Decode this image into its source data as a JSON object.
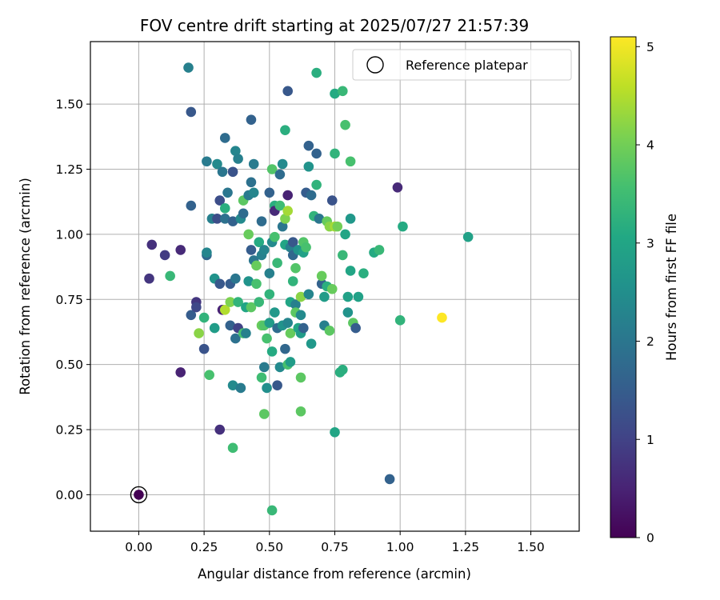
{
  "chart_data": {
    "type": "scatter",
    "title": "FOV centre drift starting at 2025/07/27 21:57:39",
    "xlabel": "Angular distance from reference (arcmin)",
    "ylabel": "Rotation from reference (arcmin)",
    "xlim": [
      -0.185,
      1.685
    ],
    "ylim": [
      -0.14,
      1.74
    ],
    "xticks": [
      "0.00",
      "0.25",
      "0.50",
      "0.75",
      "1.00",
      "1.25",
      "1.50"
    ],
    "yticks": [
      "0.00",
      "0.25",
      "0.50",
      "0.75",
      "1.00",
      "1.25",
      "1.50"
    ],
    "xtick_values": [
      0,
      0.25,
      0.5,
      0.75,
      1.0,
      1.25,
      1.5
    ],
    "ytick_values": [
      0,
      0.25,
      0.5,
      0.75,
      1.0,
      1.25,
      1.5
    ],
    "grid": true,
    "colormap": "viridis",
    "colorbar": {
      "label": "Hours from first FF file",
      "range": [
        0,
        5.1
      ],
      "ticks": [
        "0",
        "1",
        "2",
        "3",
        "4",
        "5"
      ],
      "tick_values": [
        0,
        1,
        2,
        3,
        4,
        5
      ]
    },
    "legend": {
      "position": "top-right",
      "entries": [
        "Reference platepar"
      ]
    },
    "reference_point": {
      "x": 0,
      "y": 0,
      "hours": 0
    },
    "points": [
      [
        0.0,
        0.0,
        0.0
      ],
      [
        0.04,
        0.83,
        0.8
      ],
      [
        0.05,
        0.96,
        0.7
      ],
      [
        0.1,
        0.92,
        0.9
      ],
      [
        0.12,
        0.84,
        3.4
      ],
      [
        0.16,
        0.94,
        0.6
      ],
      [
        0.16,
        0.47,
        0.5
      ],
      [
        0.19,
        1.64,
        2.2
      ],
      [
        0.2,
        1.47,
        1.4
      ],
      [
        0.2,
        1.11,
        1.6
      ],
      [
        0.2,
        0.69,
        1.5
      ],
      [
        0.22,
        0.74,
        0.8
      ],
      [
        0.22,
        0.72,
        1.1
      ],
      [
        0.23,
        0.62,
        4.2
      ],
      [
        0.25,
        0.68,
        3.3
      ],
      [
        0.25,
        0.56,
        1.3
      ],
      [
        0.26,
        1.28,
        2.1
      ],
      [
        0.26,
        0.92,
        1.7
      ],
      [
        0.26,
        0.93,
        2.3
      ],
      [
        0.27,
        0.46,
        3.6
      ],
      [
        0.28,
        1.06,
        2.2
      ],
      [
        0.29,
        0.83,
        2.6
      ],
      [
        0.29,
        0.64,
        2.8
      ],
      [
        0.3,
        1.27,
        2.4
      ],
      [
        0.3,
        1.06,
        1.2
      ],
      [
        0.31,
        1.13,
        1.2
      ],
      [
        0.31,
        0.81,
        1.4
      ],
      [
        0.31,
        0.25,
        0.7
      ],
      [
        0.32,
        1.24,
        2.0
      ],
      [
        0.32,
        0.71,
        0.5
      ],
      [
        0.33,
        1.37,
        1.8
      ],
      [
        0.33,
        1.06,
        1.9
      ],
      [
        0.33,
        0.71,
        4.5
      ],
      [
        0.33,
        1.1,
        3.2
      ],
      [
        0.34,
        1.16,
        2.0
      ],
      [
        0.35,
        0.81,
        1.5
      ],
      [
        0.35,
        0.65,
        1.6
      ],
      [
        0.35,
        0.74,
        4.1
      ],
      [
        0.36,
        1.24,
        1.3
      ],
      [
        0.36,
        1.05,
        1.6
      ],
      [
        0.36,
        0.42,
        2.4
      ],
      [
        0.36,
        0.18,
        3.5
      ],
      [
        0.37,
        1.32,
        2.3
      ],
      [
        0.37,
        0.83,
        2.0
      ],
      [
        0.37,
        0.6,
        1.9
      ],
      [
        0.38,
        1.29,
        2.2
      ],
      [
        0.38,
        0.74,
        3.3
      ],
      [
        0.38,
        0.64,
        1.0
      ],
      [
        0.39,
        1.06,
        2.4
      ],
      [
        0.39,
        0.41,
        2.1
      ],
      [
        0.4,
        1.13,
        3.8
      ],
      [
        0.4,
        1.08,
        1.8
      ],
      [
        0.4,
        0.62,
        3.6
      ],
      [
        0.41,
        0.72,
        3.0
      ],
      [
        0.41,
        0.62,
        2.2
      ],
      [
        0.42,
        1.15,
        2.1
      ],
      [
        0.42,
        1.0,
        3.9
      ],
      [
        0.42,
        0.82,
        2.6
      ],
      [
        0.43,
        1.44,
        1.6
      ],
      [
        0.43,
        1.2,
        1.9
      ],
      [
        0.43,
        0.94,
        1.5
      ],
      [
        0.43,
        0.72,
        3.8
      ],
      [
        0.44,
        1.27,
        2.1
      ],
      [
        0.44,
        1.16,
        2.3
      ],
      [
        0.44,
        0.9,
        2.0
      ],
      [
        0.45,
        0.81,
        3.6
      ],
      [
        0.45,
        0.88,
        3.9
      ],
      [
        0.46,
        0.97,
        3.1
      ],
      [
        0.46,
        0.74,
        3.4
      ],
      [
        0.47,
        1.05,
        1.8
      ],
      [
        0.47,
        0.92,
        2.2
      ],
      [
        0.47,
        0.65,
        3.9
      ],
      [
        0.47,
        0.45,
        3.5
      ],
      [
        0.48,
        0.94,
        2.3
      ],
      [
        0.48,
        0.65,
        3.7
      ],
      [
        0.48,
        0.49,
        2.1
      ],
      [
        0.48,
        0.31,
        3.8
      ],
      [
        0.49,
        0.6,
        3.6
      ],
      [
        0.49,
        0.41,
        2.5
      ],
      [
        0.5,
        1.16,
        1.6
      ],
      [
        0.5,
        0.85,
        2.2
      ],
      [
        0.5,
        0.77,
        3.3
      ],
      [
        0.5,
        0.66,
        2.8
      ],
      [
        0.51,
        1.25,
        3.7
      ],
      [
        0.51,
        0.97,
        2.4
      ],
      [
        0.51,
        0.55,
        3.1
      ],
      [
        0.51,
        -0.06,
        3.4
      ],
      [
        0.52,
        1.11,
        3.2
      ],
      [
        0.52,
        1.09,
        0.6
      ],
      [
        0.52,
        0.99,
        3.6
      ],
      [
        0.52,
        0.7,
        2.7
      ],
      [
        0.53,
        0.64,
        1.8
      ],
      [
        0.53,
        0.42,
        1.4
      ],
      [
        0.53,
        0.89,
        3.4
      ],
      [
        0.54,
        1.23,
        1.8
      ],
      [
        0.54,
        1.11,
        3.5
      ],
      [
        0.54,
        0.49,
        2.4
      ],
      [
        0.55,
        1.27,
        2.4
      ],
      [
        0.55,
        1.03,
        2.0
      ],
      [
        0.55,
        0.65,
        2.6
      ],
      [
        0.56,
        1.4,
        3.2
      ],
      [
        0.56,
        1.06,
        4.1
      ],
      [
        0.56,
        0.96,
        3.0
      ],
      [
        0.56,
        0.56,
        1.7
      ],
      [
        0.57,
        1.55,
        1.4
      ],
      [
        0.57,
        1.15,
        0.5
      ],
      [
        0.57,
        1.09,
        4.4
      ],
      [
        0.57,
        0.66,
        2.3
      ],
      [
        0.57,
        0.5,
        3.6
      ],
      [
        0.58,
        0.51,
        2.8
      ],
      [
        0.58,
        0.95,
        2.2
      ],
      [
        0.58,
        0.74,
        3.0
      ],
      [
        0.58,
        0.62,
        3.9
      ],
      [
        0.59,
        0.97,
        1.4
      ],
      [
        0.59,
        0.92,
        1.7
      ],
      [
        0.59,
        0.82,
        3.3
      ],
      [
        0.6,
        0.87,
        3.7
      ],
      [
        0.6,
        0.73,
        2.2
      ],
      [
        0.6,
        0.7,
        3.8
      ],
      [
        0.61,
        0.64,
        3.0
      ],
      [
        0.61,
        0.94,
        2.6
      ],
      [
        0.62,
        0.76,
        4.2
      ],
      [
        0.62,
        0.69,
        2.4
      ],
      [
        0.62,
        0.62,
        2.8
      ],
      [
        0.62,
        0.45,
        3.8
      ],
      [
        0.62,
        0.32,
        3.8
      ],
      [
        0.63,
        0.93,
        2.9
      ],
      [
        0.63,
        0.97,
        3.7
      ],
      [
        0.63,
        0.64,
        1.6
      ],
      [
        0.64,
        1.16,
        1.5
      ],
      [
        0.64,
        0.95,
        3.6
      ],
      [
        0.65,
        1.34,
        1.6
      ],
      [
        0.65,
        1.26,
        2.6
      ],
      [
        0.65,
        0.77,
        2.3
      ],
      [
        0.66,
        0.58,
        2.7
      ],
      [
        0.66,
        1.15,
        1.8
      ],
      [
        0.67,
        1.07,
        3.3
      ],
      [
        0.68,
        1.62,
        3.2
      ],
      [
        0.68,
        1.19,
        3.3
      ],
      [
        0.68,
        1.31,
        1.6
      ],
      [
        0.69,
        1.06,
        2.0
      ],
      [
        0.7,
        0.81,
        1.6
      ],
      [
        0.7,
        0.84,
        3.9
      ],
      [
        0.71,
        0.76,
        2.8
      ],
      [
        0.71,
        0.65,
        2.2
      ],
      [
        0.72,
        0.8,
        3.2
      ],
      [
        0.72,
        1.05,
        3.9
      ],
      [
        0.73,
        1.03,
        4.2
      ],
      [
        0.73,
        0.63,
        3.8
      ],
      [
        0.74,
        1.13,
        1.3
      ],
      [
        0.74,
        0.79,
        3.9
      ],
      [
        0.75,
        1.31,
        3.3
      ],
      [
        0.75,
        1.54,
        3.1
      ],
      [
        0.75,
        0.24,
        3.0
      ],
      [
        0.75,
        1.03,
        4.4
      ],
      [
        0.76,
        1.03,
        4.0
      ],
      [
        0.77,
        0.47,
        3.2
      ],
      [
        0.78,
        0.48,
        3.2
      ],
      [
        0.78,
        0.92,
        3.4
      ],
      [
        0.78,
        1.55,
        3.4
      ],
      [
        0.79,
        1.42,
        3.6
      ],
      [
        0.79,
        1.0,
        3.0
      ],
      [
        0.8,
        0.76,
        2.9
      ],
      [
        0.8,
        0.7,
        2.6
      ],
      [
        0.81,
        1.06,
        2.7
      ],
      [
        0.81,
        0.86,
        3.0
      ],
      [
        0.81,
        1.28,
        3.6
      ],
      [
        0.82,
        0.66,
        3.8
      ],
      [
        0.83,
        0.64,
        1.5
      ],
      [
        0.84,
        0.76,
        2.9
      ],
      [
        0.86,
        0.85,
        3.2
      ],
      [
        0.9,
        0.93,
        3.1
      ],
      [
        0.92,
        0.94,
        3.4
      ],
      [
        0.96,
        0.06,
        1.6
      ],
      [
        0.99,
        1.18,
        0.6
      ],
      [
        1.0,
        0.67,
        3.3
      ],
      [
        1.01,
        1.03,
        3.1
      ],
      [
        1.16,
        0.68,
        5.1
      ],
      [
        1.26,
        0.99,
        2.9
      ]
    ]
  }
}
